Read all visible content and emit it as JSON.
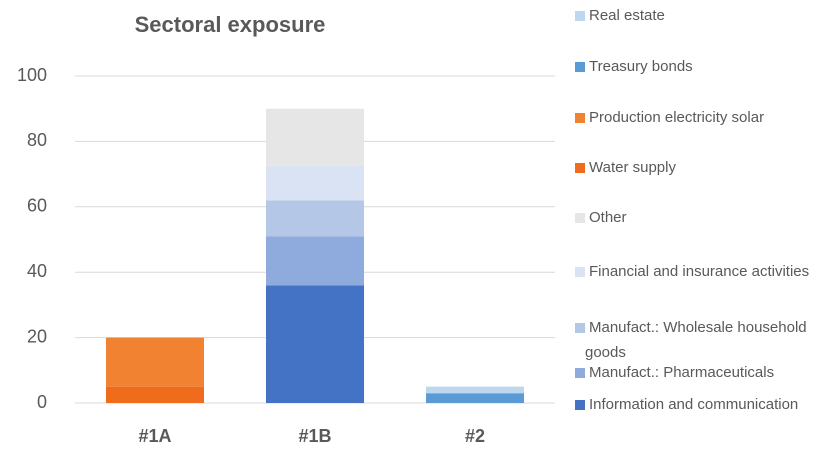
{
  "chart_data": {
    "type": "stacked_bar",
    "title": "Sectoral exposure",
    "categories": [
      "#1A",
      "#1B",
      "#2"
    ],
    "series": [
      {
        "name": "Information and communication",
        "color": "#4472c4",
        "values": [
          null,
          36,
          null
        ]
      },
      {
        "name": "Manufact.: Pharmaceuticals",
        "color": "#8faadc",
        "values": [
          null,
          15,
          null
        ]
      },
      {
        "name": "Manufact.: Wholesale household goods",
        "color": "#b4c7e7",
        "values": [
          null,
          11,
          null
        ]
      },
      {
        "name": "Financial and insurance activities",
        "color": "#dae3f3",
        "values": [
          null,
          10.5,
          null
        ]
      },
      {
        "name": "Other",
        "color": "#e7e6e6",
        "values": [
          null,
          17.5,
          null
        ]
      },
      {
        "name": "Water supply",
        "color": "#ee6c1c",
        "values": [
          5,
          null,
          null
        ]
      },
      {
        "name": "Production electricity solar",
        "color": "#f08232",
        "values": [
          15,
          null,
          null
        ]
      },
      {
        "name": "Treasury bonds",
        "color": "#5b9bd5",
        "values": [
          null,
          null,
          3
        ]
      },
      {
        "name": "Real estate",
        "color": "#bdd7ee",
        "values": [
          null,
          null,
          2
        ]
      }
    ],
    "ylim": [
      0,
      100
    ],
    "yticks": [
      0,
      20,
      40,
      60,
      80,
      100
    ],
    "grid": true
  }
}
